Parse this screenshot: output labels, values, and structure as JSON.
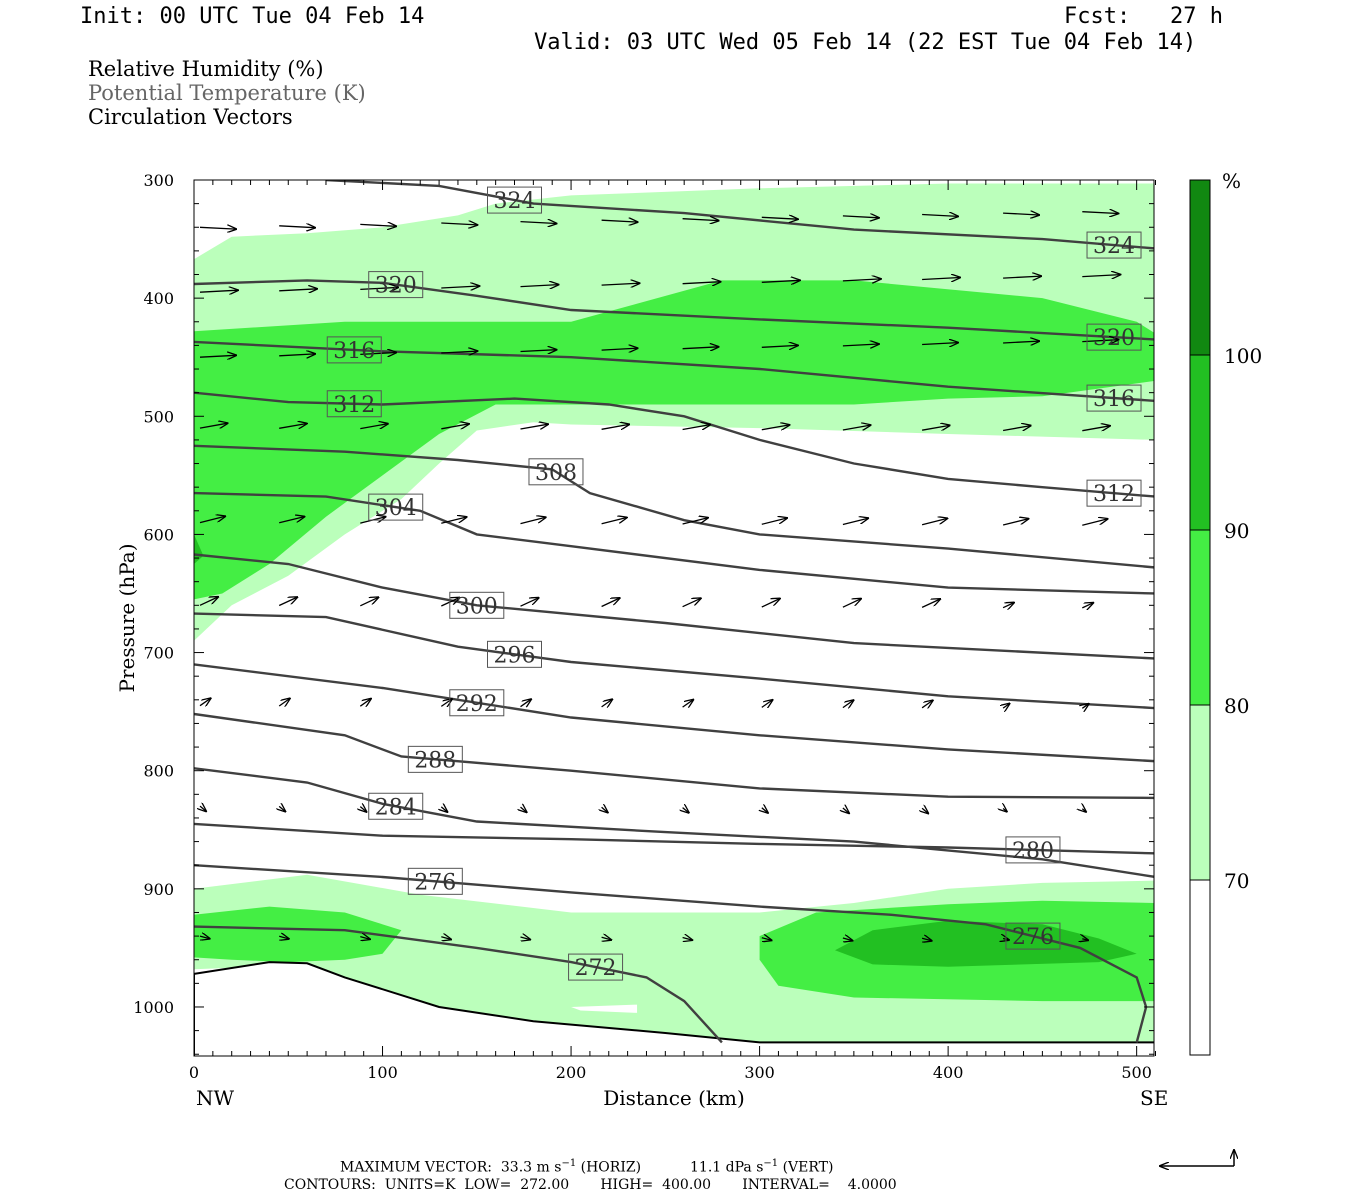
{
  "header": {
    "init": "Init: 00 UTC Tue 04 Feb 14",
    "fcst": "Fcst:   27 h",
    "valid": "Valid: 03 UTC Wed 05 Feb 14 (22 EST Tue 04 Feb 14)"
  },
  "legend": {
    "rh": "Relative Humidity (%)",
    "theta": "Potential Temperature (K)",
    "vectors": "Circulation Vectors"
  },
  "footer": {
    "max_vector_label": "MAXIMUM VECTOR:",
    "max_horiz": "33.3 m s",
    "max_horiz_unit": "(HORIZ)",
    "max_vert": "11.1 dPa s",
    "max_vert_unit": "(VERT)",
    "contours": "CONTOURS:  UNITS=K  LOW=  272.00       HIGH=  400.00       INTERVAL=    4.0000"
  },
  "colors": {
    "rh70": "#bbffbb",
    "rh80": "#44ee44",
    "rh90": "#22c022",
    "rh100": "#118811",
    "contour": "#404040"
  },
  "chart_data": {
    "type": "cross-section",
    "xlabel": "Distance (km)",
    "ylabel": "Pressure (hPa)",
    "xlim": [
      0,
      510
    ],
    "ylim": [
      300,
      1040
    ],
    "x_ticks": [
      0,
      100,
      200,
      300,
      400,
      500
    ],
    "y_ticks": [
      300,
      400,
      500,
      600,
      700,
      800,
      900,
      1000
    ],
    "x_end_labels": [
      "NW",
      "SE"
    ],
    "colorbar": {
      "unit": "%",
      "levels": [
        70,
        80,
        90,
        100
      ],
      "colors": [
        "#ffffff",
        "#bbffbb",
        "#44ee44",
        "#22c022",
        "#118811"
      ]
    },
    "rh_regions": [
      {
        "level": 70,
        "points": [
          [
            0,
            367
          ],
          [
            20,
            348
          ],
          [
            60,
            345
          ],
          [
            100,
            340
          ],
          [
            140,
            330
          ],
          [
            160,
            320
          ],
          [
            200,
            313
          ],
          [
            300,
            307
          ],
          [
            400,
            303
          ],
          [
            510,
            303
          ],
          [
            510,
            520
          ],
          [
            400,
            515
          ],
          [
            300,
            510
          ],
          [
            200,
            507
          ],
          [
            180,
            505
          ],
          [
            150,
            512
          ],
          [
            130,
            540
          ],
          [
            110,
            570
          ],
          [
            80,
            600
          ],
          [
            50,
            635
          ],
          [
            20,
            660
          ],
          [
            0,
            690
          ]
        ]
      },
      {
        "level": 70,
        "points": [
          [
            0,
            900
          ],
          [
            60,
            888
          ],
          [
            120,
            905
          ],
          [
            200,
            920
          ],
          [
            300,
            920
          ],
          [
            350,
            912
          ],
          [
            400,
            900
          ],
          [
            450,
            895
          ],
          [
            510,
            893
          ],
          [
            510,
            1030
          ],
          [
            300,
            1030
          ],
          [
            250,
            1022
          ],
          [
            200,
            1015
          ],
          [
            120,
            1000
          ],
          [
            50,
            965
          ],
          [
            0,
            968
          ]
        ]
      },
      {
        "level": 80,
        "points": [
          [
            0,
            428
          ],
          [
            80,
            420
          ],
          [
            200,
            420
          ],
          [
            280,
            385
          ],
          [
            350,
            385
          ],
          [
            450,
            400
          ],
          [
            500,
            420
          ],
          [
            510,
            430
          ],
          [
            510,
            470
          ],
          [
            450,
            483
          ],
          [
            400,
            485
          ],
          [
            350,
            490
          ],
          [
            300,
            490
          ],
          [
            240,
            490
          ],
          [
            200,
            490
          ],
          [
            160,
            490
          ],
          [
            130,
            515
          ],
          [
            100,
            550
          ],
          [
            70,
            585
          ],
          [
            40,
            625
          ],
          [
            15,
            650
          ],
          [
            0,
            655
          ]
        ]
      },
      {
        "level": 80,
        "points": [
          [
            0,
            922
          ],
          [
            40,
            915
          ],
          [
            80,
            920
          ],
          [
            110,
            935
          ],
          [
            100,
            955
          ],
          [
            80,
            960
          ],
          [
            50,
            962
          ],
          [
            20,
            960
          ],
          [
            0,
            958
          ]
        ]
      },
      {
        "level": 80,
        "points": [
          [
            300,
            940
          ],
          [
            330,
            920
          ],
          [
            400,
            913
          ],
          [
            450,
            910
          ],
          [
            510,
            912
          ],
          [
            510,
            995
          ],
          [
            450,
            995
          ],
          [
            350,
            992
          ],
          [
            310,
            982
          ],
          [
            300,
            960
          ]
        ]
      },
      {
        "level": 90,
        "points": [
          [
            340,
            952
          ],
          [
            360,
            935
          ],
          [
            400,
            927
          ],
          [
            450,
            930
          ],
          [
            480,
            942
          ],
          [
            500,
            955
          ],
          [
            480,
            962
          ],
          [
            400,
            966
          ],
          [
            360,
            964
          ]
        ]
      },
      {
        "level": 90,
        "points": [
          [
            0,
            600
          ],
          [
            5,
            618
          ],
          [
            0,
            625
          ]
        ]
      }
    ],
    "theta_contours": [
      {
        "value": 272,
        "label_x": 213,
        "points": [
          [
            0,
            932
          ],
          [
            80,
            935
          ],
          [
            150,
            950
          ],
          [
            200,
            962
          ],
          [
            240,
            975
          ],
          [
            260,
            995
          ],
          [
            280,
            1030
          ]
        ]
      },
      {
        "value": 276,
        "label_x": [
          128,
          445
        ],
        "points": [
          [
            0,
            880
          ],
          [
            100,
            890
          ],
          [
            200,
            903
          ],
          [
            300,
            915
          ],
          [
            370,
            922
          ],
          [
            420,
            930
          ],
          [
            470,
            950
          ],
          [
            500,
            975
          ],
          [
            505,
            1000
          ],
          [
            500,
            1030
          ]
        ]
      },
      {
        "value": 280,
        "label_x": 445,
        "points": [
          [
            0,
            845
          ],
          [
            100,
            855
          ],
          [
            200,
            858
          ],
          [
            300,
            862
          ],
          [
            400,
            865
          ],
          [
            510,
            870
          ]
        ]
      },
      {
        "value": 284,
        "label_x": 107,
        "points": [
          [
            0,
            798
          ],
          [
            60,
            810
          ],
          [
            100,
            828
          ],
          [
            150,
            843
          ],
          [
            250,
            852
          ],
          [
            350,
            860
          ],
          [
            450,
            875
          ],
          [
            510,
            890
          ]
        ]
      },
      {
        "value": 288,
        "label_x": 128,
        "points": [
          [
            0,
            752
          ],
          [
            80,
            770
          ],
          [
            110,
            788
          ],
          [
            200,
            800
          ],
          [
            300,
            815
          ],
          [
            400,
            822
          ],
          [
            510,
            823
          ]
        ]
      },
      {
        "value": 292,
        "label_x": 150,
        "points": [
          [
            0,
            710
          ],
          [
            100,
            730
          ],
          [
            200,
            755
          ],
          [
            300,
            770
          ],
          [
            400,
            782
          ],
          [
            510,
            792
          ]
        ]
      },
      {
        "value": 296,
        "label_x": 170,
        "points": [
          [
            0,
            667
          ],
          [
            70,
            670
          ],
          [
            140,
            695
          ],
          [
            200,
            708
          ],
          [
            300,
            722
          ],
          [
            400,
            737
          ],
          [
            510,
            747
          ]
        ]
      },
      {
        "value": 300,
        "label_x": 150,
        "points": [
          [
            0,
            617
          ],
          [
            50,
            625
          ],
          [
            100,
            645
          ],
          [
            150,
            660
          ],
          [
            250,
            675
          ],
          [
            350,
            692
          ],
          [
            510,
            705
          ]
        ]
      },
      {
        "value": 304,
        "label_x": 107,
        "points": [
          [
            0,
            565
          ],
          [
            70,
            568
          ],
          [
            120,
            580
          ],
          [
            150,
            600
          ],
          [
            200,
            610
          ],
          [
            300,
            630
          ],
          [
            400,
            645
          ],
          [
            510,
            650
          ]
        ]
      },
      {
        "value": 308,
        "label_x": 192,
        "points": [
          [
            0,
            525
          ],
          [
            80,
            530
          ],
          [
            140,
            537
          ],
          [
            190,
            545
          ],
          [
            210,
            565
          ],
          [
            260,
            588
          ],
          [
            300,
            600
          ],
          [
            400,
            612
          ],
          [
            510,
            628
          ]
        ]
      },
      {
        "value": 312,
        "label_x": [
          85,
          488
        ],
        "points": [
          [
            0,
            480
          ],
          [
            50,
            488
          ],
          [
            100,
            490
          ],
          [
            170,
            485
          ],
          [
            220,
            490
          ],
          [
            260,
            500
          ],
          [
            300,
            520
          ],
          [
            350,
            540
          ],
          [
            400,
            553
          ],
          [
            450,
            560
          ],
          [
            510,
            568
          ]
        ]
      },
      {
        "value": 316,
        "label_x": [
          85,
          488
        ],
        "points": [
          [
            0,
            437
          ],
          [
            100,
            445
          ],
          [
            200,
            450
          ],
          [
            300,
            460
          ],
          [
            400,
            475
          ],
          [
            510,
            487
          ]
        ]
      },
      {
        "value": 320,
        "label_x": [
          107,
          488
        ],
        "points": [
          [
            0,
            388
          ],
          [
            60,
            385
          ],
          [
            100,
            387
          ],
          [
            150,
            398
          ],
          [
            200,
            410
          ],
          [
            300,
            418
          ],
          [
            400,
            425
          ],
          [
            510,
            435
          ]
        ]
      },
      {
        "value": 324,
        "label_x": [
          170,
          488
        ],
        "points": [
          [
            70,
            300
          ],
          [
            130,
            305
          ],
          [
            180,
            320
          ],
          [
            260,
            328
          ],
          [
            350,
            342
          ],
          [
            450,
            350
          ],
          [
            510,
            358
          ]
        ]
      }
    ]
  }
}
